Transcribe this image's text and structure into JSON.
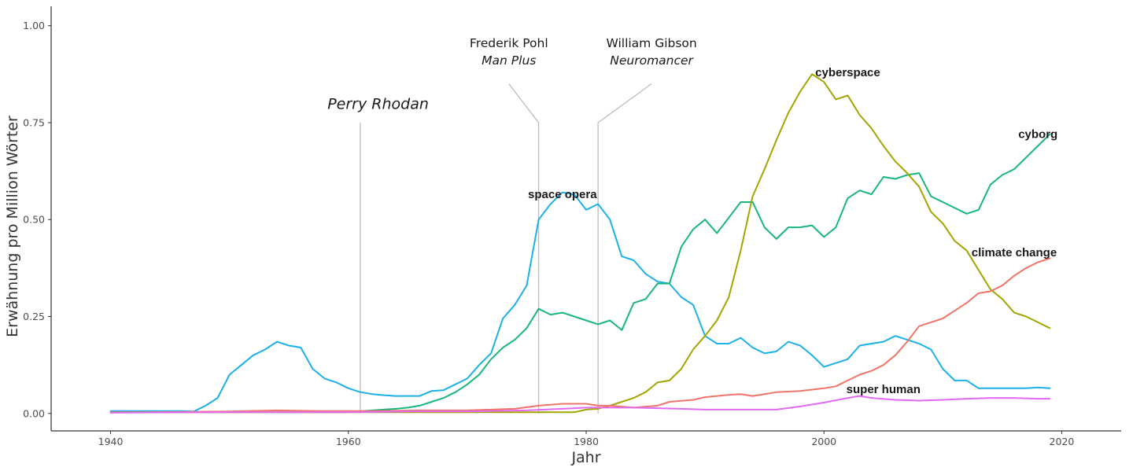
{
  "chart_data": {
    "type": "line",
    "xlabel": "Jahr",
    "ylabel": "Erwähnung pro Million Wörter",
    "xlim": [
      1935,
      2025
    ],
    "ylim": [
      -0.045,
      1.05
    ],
    "x_ticks": [
      1940,
      1960,
      1980,
      2000,
      2020
    ],
    "y_ticks": [
      0.0,
      0.25,
      0.5,
      0.75,
      1.0
    ],
    "y_tick_labels": [
      "0.00",
      "0.25",
      "0.50",
      "0.75",
      "1.00"
    ],
    "grid": false,
    "legend": "none",
    "series": [
      {
        "name": "space opera",
        "color": "#1cb1e6",
        "label_at": [
          1978,
          0.565
        ],
        "points": [
          [
            1940,
            0.006
          ],
          [
            1945,
            0.006
          ],
          [
            1946,
            0.006
          ],
          [
            1947,
            0.005
          ],
          [
            1948,
            0.02
          ],
          [
            1949,
            0.04
          ],
          [
            1950,
            0.1
          ],
          [
            1951,
            0.125
          ],
          [
            1952,
            0.15
          ],
          [
            1953,
            0.165
          ],
          [
            1954,
            0.185
          ],
          [
            1955,
            0.175
          ],
          [
            1956,
            0.17
          ],
          [
            1957,
            0.115
          ],
          [
            1958,
            0.09
          ],
          [
            1959,
            0.08
          ],
          [
            1960,
            0.065
          ],
          [
            1961,
            0.055
          ],
          [
            1962,
            0.05
          ],
          [
            1963,
            0.047
          ],
          [
            1964,
            0.045
          ],
          [
            1965,
            0.045
          ],
          [
            1966,
            0.045
          ],
          [
            1967,
            0.058
          ],
          [
            1968,
            0.06
          ],
          [
            1969,
            0.075
          ],
          [
            1970,
            0.09
          ],
          [
            1971,
            0.125
          ],
          [
            1972,
            0.155
          ],
          [
            1973,
            0.245
          ],
          [
            1974,
            0.28
          ],
          [
            1975,
            0.33
          ],
          [
            1976,
            0.5
          ],
          [
            1977,
            0.54
          ],
          [
            1978,
            0.57
          ],
          [
            1979,
            0.565
          ],
          [
            1980,
            0.525
          ],
          [
            1981,
            0.54
          ],
          [
            1982,
            0.5
          ],
          [
            1983,
            0.405
          ],
          [
            1984,
            0.395
          ],
          [
            1985,
            0.36
          ],
          [
            1986,
            0.34
          ],
          [
            1987,
            0.335
          ],
          [
            1988,
            0.3
          ],
          [
            1989,
            0.28
          ],
          [
            1990,
            0.2
          ],
          [
            1991,
            0.18
          ],
          [
            1992,
            0.18
          ],
          [
            1993,
            0.195
          ],
          [
            1994,
            0.17
          ],
          [
            1995,
            0.155
          ],
          [
            1996,
            0.16
          ],
          [
            1997,
            0.185
          ],
          [
            1998,
            0.175
          ],
          [
            1999,
            0.15
          ],
          [
            2000,
            0.12
          ],
          [
            2001,
            0.13
          ],
          [
            2002,
            0.14
          ],
          [
            2003,
            0.175
          ],
          [
            2004,
            0.18
          ],
          [
            2005,
            0.185
          ],
          [
            2006,
            0.2
          ],
          [
            2007,
            0.19
          ],
          [
            2008,
            0.18
          ],
          [
            2009,
            0.165
          ],
          [
            2010,
            0.115
          ],
          [
            2011,
            0.085
          ],
          [
            2012,
            0.085
          ],
          [
            2013,
            0.065
          ],
          [
            2014,
            0.065
          ],
          [
            2015,
            0.065
          ],
          [
            2016,
            0.065
          ],
          [
            2017,
            0.065
          ],
          [
            2018,
            0.067
          ],
          [
            2019,
            0.065
          ]
        ]
      },
      {
        "name": "cyborg",
        "color": "#19b67c",
        "label_at": [
          2018,
          0.72
        ],
        "points": [
          [
            1940,
            0.003
          ],
          [
            1950,
            0.003
          ],
          [
            1955,
            0.003
          ],
          [
            1960,
            0.003
          ],
          [
            1962,
            0.008
          ],
          [
            1964,
            0.012
          ],
          [
            1965,
            0.015
          ],
          [
            1966,
            0.02
          ],
          [
            1967,
            0.03
          ],
          [
            1968,
            0.04
          ],
          [
            1969,
            0.055
          ],
          [
            1970,
            0.075
          ],
          [
            1971,
            0.1
          ],
          [
            1972,
            0.14
          ],
          [
            1973,
            0.17
          ],
          [
            1974,
            0.19
          ],
          [
            1975,
            0.22
          ],
          [
            1976,
            0.27
          ],
          [
            1977,
            0.255
          ],
          [
            1978,
            0.26
          ],
          [
            1979,
            0.25
          ],
          [
            1980,
            0.24
          ],
          [
            1981,
            0.23
          ],
          [
            1982,
            0.24
          ],
          [
            1983,
            0.215
          ],
          [
            1984,
            0.285
          ],
          [
            1985,
            0.295
          ],
          [
            1986,
            0.335
          ],
          [
            1987,
            0.335
          ],
          [
            1988,
            0.43
          ],
          [
            1989,
            0.475
          ],
          [
            1990,
            0.5
          ],
          [
            1991,
            0.465
          ],
          [
            1992,
            0.505
          ],
          [
            1993,
            0.545
          ],
          [
            1994,
            0.545
          ],
          [
            1995,
            0.48
          ],
          [
            1996,
            0.45
          ],
          [
            1997,
            0.48
          ],
          [
            1998,
            0.48
          ],
          [
            1999,
            0.485
          ],
          [
            2000,
            0.455
          ],
          [
            2001,
            0.48
          ],
          [
            2002,
            0.555
          ],
          [
            2003,
            0.575
          ],
          [
            2004,
            0.565
          ],
          [
            2005,
            0.61
          ],
          [
            2006,
            0.605
          ],
          [
            2007,
            0.615
          ],
          [
            2008,
            0.62
          ],
          [
            2009,
            0.56
          ],
          [
            2010,
            0.545
          ],
          [
            2011,
            0.53
          ],
          [
            2012,
            0.515
          ],
          [
            2013,
            0.525
          ],
          [
            2014,
            0.59
          ],
          [
            2015,
            0.615
          ],
          [
            2016,
            0.63
          ],
          [
            2017,
            0.66
          ],
          [
            2018,
            0.69
          ],
          [
            2019,
            0.72
          ]
        ]
      },
      {
        "name": "cyberspace",
        "color": "#a3a500",
        "label_at": [
          2002,
          0.88
        ],
        "points": [
          [
            1940,
            0.003
          ],
          [
            1960,
            0.003
          ],
          [
            1970,
            0.003
          ],
          [
            1975,
            0.003
          ],
          [
            1979,
            0.003
          ],
          [
            1980,
            0.01
          ],
          [
            1981,
            0.012
          ],
          [
            1982,
            0.02
          ],
          [
            1983,
            0.03
          ],
          [
            1984,
            0.04
          ],
          [
            1985,
            0.055
          ],
          [
            1986,
            0.08
          ],
          [
            1987,
            0.085
          ],
          [
            1988,
            0.115
          ],
          [
            1989,
            0.165
          ],
          [
            1990,
            0.2
          ],
          [
            1991,
            0.24
          ],
          [
            1992,
            0.3
          ],
          [
            1993,
            0.42
          ],
          [
            1994,
            0.56
          ],
          [
            1995,
            0.63
          ],
          [
            1996,
            0.705
          ],
          [
            1997,
            0.775
          ],
          [
            1998,
            0.83
          ],
          [
            1999,
            0.875
          ],
          [
            2000,
            0.855
          ],
          [
            2001,
            0.81
          ],
          [
            2002,
            0.82
          ],
          [
            2003,
            0.77
          ],
          [
            2004,
            0.735
          ],
          [
            2005,
            0.69
          ],
          [
            2006,
            0.65
          ],
          [
            2007,
            0.62
          ],
          [
            2008,
            0.585
          ],
          [
            2009,
            0.52
          ],
          [
            2010,
            0.49
          ],
          [
            2011,
            0.445
          ],
          [
            2012,
            0.42
          ],
          [
            2013,
            0.37
          ],
          [
            2014,
            0.32
          ],
          [
            2015,
            0.295
          ],
          [
            2016,
            0.26
          ],
          [
            2017,
            0.25
          ],
          [
            2018,
            0.235
          ],
          [
            2019,
            0.22
          ]
        ]
      },
      {
        "name": "climate change",
        "color": "#f07568",
        "label_at": [
          2016,
          0.415
        ],
        "points": [
          [
            1940,
            0.002
          ],
          [
            1950,
            0.005
          ],
          [
            1954,
            0.008
          ],
          [
            1958,
            0.006
          ],
          [
            1962,
            0.006
          ],
          [
            1966,
            0.008
          ],
          [
            1970,
            0.008
          ],
          [
            1974,
            0.012
          ],
          [
            1976,
            0.02
          ],
          [
            1978,
            0.025
          ],
          [
            1980,
            0.025
          ],
          [
            1981,
            0.02
          ],
          [
            1982,
            0.02
          ],
          [
            1984,
            0.015
          ],
          [
            1986,
            0.02
          ],
          [
            1987,
            0.03
          ],
          [
            1989,
            0.035
          ],
          [
            1990,
            0.042
          ],
          [
            1992,
            0.048
          ],
          [
            1993,
            0.05
          ],
          [
            1994,
            0.045
          ],
          [
            1995,
            0.05
          ],
          [
            1996,
            0.055
          ],
          [
            1998,
            0.058
          ],
          [
            2000,
            0.065
          ],
          [
            2001,
            0.07
          ],
          [
            2002,
            0.085
          ],
          [
            2003,
            0.1
          ],
          [
            2004,
            0.11
          ],
          [
            2005,
            0.125
          ],
          [
            2006,
            0.15
          ],
          [
            2007,
            0.185
          ],
          [
            2008,
            0.225
          ],
          [
            2009,
            0.235
          ],
          [
            2010,
            0.245
          ],
          [
            2011,
            0.265
          ],
          [
            2012,
            0.285
          ],
          [
            2013,
            0.31
          ],
          [
            2014,
            0.315
          ],
          [
            2015,
            0.33
          ],
          [
            2016,
            0.355
          ],
          [
            2017,
            0.375
          ],
          [
            2018,
            0.39
          ],
          [
            2019,
            0.4
          ]
        ]
      },
      {
        "name": "super human",
        "color": "#e36af2",
        "label_at": [
          2005,
          0.062
        ],
        "points": [
          [
            1940,
            0.002
          ],
          [
            1950,
            0.003
          ],
          [
            1960,
            0.003
          ],
          [
            1965,
            0.005
          ],
          [
            1970,
            0.005
          ],
          [
            1975,
            0.008
          ],
          [
            1978,
            0.012
          ],
          [
            1980,
            0.015
          ],
          [
            1982,
            0.015
          ],
          [
            1984,
            0.015
          ],
          [
            1988,
            0.012
          ],
          [
            1990,
            0.01
          ],
          [
            1995,
            0.01
          ],
          [
            1996,
            0.01
          ],
          [
            1998,
            0.018
          ],
          [
            2000,
            0.028
          ],
          [
            2002,
            0.04
          ],
          [
            2003,
            0.045
          ],
          [
            2004,
            0.04
          ],
          [
            2006,
            0.035
          ],
          [
            2008,
            0.033
          ],
          [
            2010,
            0.035
          ],
          [
            2012,
            0.038
          ],
          [
            2014,
            0.04
          ],
          [
            2016,
            0.04
          ],
          [
            2018,
            0.038
          ],
          [
            2019,
            0.038
          ]
        ]
      }
    ],
    "annotations": [
      {
        "lines": [
          "Perry Rhodan"
        ],
        "italic": [
          true
        ],
        "big": true,
        "year": 1961,
        "top_value": 0.75,
        "text_at": [
          1962.5,
          0.785
        ]
      },
      {
        "lines": [
          "Frederik Pohl",
          "Man Plus"
        ],
        "italic": [
          false,
          true
        ],
        "big": false,
        "year": 1976,
        "top_value": 0.75,
        "kink_value": 0.85,
        "text_at": [
          1973.5,
          0.945
        ]
      },
      {
        "lines": [
          "William Gibson",
          "Neuromancer"
        ],
        "italic": [
          false,
          true
        ],
        "big": false,
        "year": 1981,
        "top_value": 0.75,
        "kink_value": 0.85,
        "text_at": [
          1985.5,
          0.945
        ]
      }
    ]
  }
}
